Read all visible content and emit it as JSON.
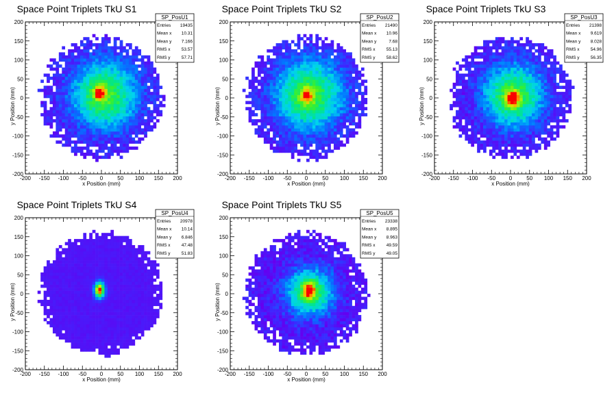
{
  "chart_data": [
    {
      "type": "heatmap",
      "title": "Space Point Triplets TkU S1",
      "xlabel": "x Position (mm)",
      "ylabel": "y Position (mm)",
      "xlim": [
        -200,
        200
      ],
      "ylim": [
        -200,
        200
      ],
      "xticks": [
        -200,
        -150,
        -100,
        -50,
        0,
        50,
        100,
        150,
        200
      ],
      "yticks": [
        -200,
        -150,
        -100,
        -50,
        0,
        50,
        100,
        150,
        200
      ],
      "stats": {
        "name": "SP_PosU1",
        "rows": [
          {
            "label": "Entries",
            "value": "19435"
          },
          {
            "label": "Mean x",
            "value": "10.31"
          },
          {
            "label": "Mean y",
            "value": "7.166"
          },
          {
            "label": "RMS x",
            "value": "53.57"
          },
          {
            "label": "RMS y",
            "value": "57.71"
          }
        ]
      },
      "distribution": {
        "center": [
          8,
          8
        ],
        "sigma": [
          60,
          62
        ],
        "radius": 160,
        "peak": [
          -5,
          12
        ],
        "peak_strength": 0.5
      }
    },
    {
      "type": "heatmap",
      "title": "Space Point Triplets TkU S2",
      "xlabel": "x Position (mm)",
      "ylabel": "y Position (mm)",
      "xlim": [
        -200,
        200
      ],
      "ylim": [
        -200,
        200
      ],
      "xticks": [
        -200,
        -150,
        -100,
        -50,
        0,
        50,
        100,
        150,
        200
      ],
      "yticks": [
        -200,
        -150,
        -100,
        -50,
        0,
        50,
        100,
        150,
        200
      ],
      "stats": {
        "name": "SP_PosU2",
        "rows": [
          {
            "label": "Entries",
            "value": "21490"
          },
          {
            "label": "Mean x",
            "value": "10.96"
          },
          {
            "label": "Mean y",
            "value": "7.68"
          },
          {
            "label": "RMS x",
            "value": "55.13"
          },
          {
            "label": "RMS y",
            "value": "58.62"
          }
        ]
      },
      "distribution": {
        "center": [
          8,
          8
        ],
        "sigma": [
          62,
          64
        ],
        "radius": 160,
        "peak": [
          0,
          5
        ],
        "peak_strength": 0.45
      }
    },
    {
      "type": "heatmap",
      "title": "Space Point Triplets TkU S3",
      "xlabel": "x Position (mm)",
      "ylabel": "y Position (mm)",
      "xlim": [
        -200,
        200
      ],
      "ylim": [
        -200,
        200
      ],
      "xticks": [
        -200,
        -150,
        -100,
        -50,
        0,
        50,
        100,
        150,
        200
      ],
      "yticks": [
        -200,
        -150,
        -100,
        -50,
        0,
        50,
        100,
        150,
        200
      ],
      "stats": {
        "name": "SP_PosU3",
        "rows": [
          {
            "label": "Entries",
            "value": "21398"
          },
          {
            "label": "Mean x",
            "value": "9.619"
          },
          {
            "label": "Mean y",
            "value": "8.028"
          },
          {
            "label": "RMS x",
            "value": "54.96"
          },
          {
            "label": "RMS y",
            "value": "56.35"
          }
        ]
      },
      "distribution": {
        "center": [
          8,
          6
        ],
        "sigma": [
          55,
          57
        ],
        "radius": 160,
        "peak": [
          5,
          -2
        ],
        "peak_strength": 0.75
      }
    },
    {
      "type": "heatmap",
      "title": "Space Point Triplets TkU S4",
      "xlabel": "x Position (mm)",
      "ylabel": "y Position (mm)",
      "xlim": [
        -200,
        200
      ],
      "ylim": [
        -200,
        200
      ],
      "xticks": [
        -200,
        -150,
        -100,
        -50,
        0,
        50,
        100,
        150,
        200
      ],
      "yticks": [
        -200,
        -150,
        -100,
        -50,
        0,
        50,
        100,
        150,
        200
      ],
      "stats": {
        "name": "SP_PosU4",
        "rows": [
          {
            "label": "Entries",
            "value": "20978"
          },
          {
            "label": "Mean x",
            "value": "10.14"
          },
          {
            "label": "Mean y",
            "value": "6.846"
          },
          {
            "label": "RMS x",
            "value": "47.48"
          },
          {
            "label": "RMS y",
            "value": "51.83"
          }
        ]
      },
      "distribution": {
        "center": [
          -5,
          10
        ],
        "sigma": [
          9,
          14
        ],
        "radius": 160,
        "peak": [
          -5,
          10
        ],
        "peak_strength": 1.0,
        "narrow": true
      }
    },
    {
      "type": "heatmap",
      "title": "Space Point Triplets TkU S5",
      "xlabel": "x Position (mm)",
      "ylabel": "y Position (mm)",
      "xlim": [
        -200,
        200
      ],
      "ylim": [
        -200,
        200
      ],
      "xticks": [
        -200,
        -150,
        -100,
        -50,
        0,
        50,
        100,
        150,
        200
      ],
      "yticks": [
        -200,
        -150,
        -100,
        -50,
        0,
        50,
        100,
        150,
        200
      ],
      "stats": {
        "name": "SP_PosU5",
        "rows": [
          {
            "label": "Entries",
            "value": "23338"
          },
          {
            "label": "Mean x",
            "value": "8.895"
          },
          {
            "label": "Mean y",
            "value": "8.963"
          },
          {
            "label": "RMS x",
            "value": "49.59"
          },
          {
            "label": "RMS y",
            "value": "49.05"
          }
        ]
      },
      "distribution": {
        "center": [
          10,
          5
        ],
        "sigma": [
          42,
          42
        ],
        "radius": 160,
        "peak": [
          8,
          8
        ],
        "peak_strength": 0.6
      }
    }
  ]
}
